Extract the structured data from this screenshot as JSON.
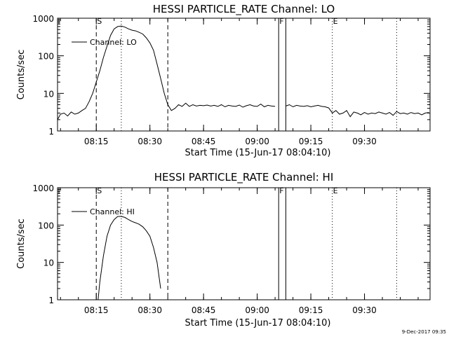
{
  "footer": {
    "timestamp": "9-Dec-2017 09:35"
  },
  "chart_data": [
    {
      "type": "line",
      "title": "HESSI PARTICLE_RATE Channel: LO",
      "ylabel": "Counts/sec",
      "xlabel": "Start Time (15-Jun-17 08:04:10)",
      "yscale": "log",
      "ylim": [
        1,
        1000
      ],
      "xlim": [
        "08:04:10",
        "09:48:20"
      ],
      "x_unit": "time of day",
      "y_ticks": [
        "1",
        "10",
        "100",
        "1000"
      ],
      "x_ticks": [
        "08:15",
        "08:30",
        "08:45",
        "09:00",
        "09:15",
        "09:30"
      ],
      "legend": {
        "position": "top-left",
        "entries": [
          "Channel: LO"
        ]
      },
      "flags": {
        "start_label": "S",
        "flare_label": "F",
        "end_label": "E"
      },
      "series": [
        {
          "name": "Channel: LO",
          "x": [
            "08:04:10",
            "08:05:00",
            "08:06:00",
            "08:07:00",
            "08:08:00",
            "08:09:00",
            "08:10:00",
            "08:11:00",
            "08:12:00",
            "08:13:00",
            "08:14:00",
            "08:15:00",
            "08:16:00",
            "08:17:00",
            "08:18:00",
            "08:19:00",
            "08:20:00",
            "08:21:00",
            "08:22:00",
            "08:23:00",
            "08:24:00",
            "08:25:00",
            "08:26:00",
            "08:27:00",
            "08:28:00",
            "08:29:00",
            "08:30:00",
            "08:31:00",
            "08:32:00",
            "08:33:00",
            "08:34:00",
            "08:35:00",
            "08:36:00",
            "08:37:00",
            "08:38:00",
            "08:39:00",
            "08:40:00",
            "08:41:00",
            "08:42:00",
            "08:43:00",
            "08:44:00",
            "08:45:00",
            "08:46:00",
            "08:47:00",
            "08:48:00",
            "08:49:00",
            "08:50:00",
            "08:51:00",
            "08:52:00",
            "08:53:00",
            "08:54:00",
            "08:55:00",
            "08:56:00",
            "08:57:00",
            "08:58:00",
            "08:59:00",
            "09:00:00",
            "09:01:00",
            "09:02:00",
            "09:03:00",
            "09:04:00",
            "09:05:00",
            "09:06:00",
            "09:07:00",
            "09:08:00",
            "09:09:00",
            "09:10:00",
            "09:11:00",
            "09:12:00",
            "09:13:00",
            "09:14:00",
            "09:15:00",
            "09:16:00",
            "09:17:00",
            "09:18:00",
            "09:19:00",
            "09:20:00",
            "09:21:00",
            "09:22:00",
            "09:23:00",
            "09:24:00",
            "09:25:00",
            "09:26:00",
            "09:27:00",
            "09:28:00",
            "09:29:00",
            "09:30:00",
            "09:31:00",
            "09:32:00",
            "09:33:00",
            "09:34:00",
            "09:35:00",
            "09:36:00",
            "09:37:00",
            "09:38:00",
            "09:39:00",
            "09:40:00",
            "09:41:00",
            "09:42:00",
            "09:43:00",
            "09:44:00",
            "09:45:00",
            "09:46:00",
            "09:47:00",
            "09:48:00"
          ],
          "y": [
            2.0,
            2.8,
            3.0,
            2.5,
            3.2,
            2.8,
            3.0,
            3.5,
            4.0,
            6.0,
            10.0,
            20.0,
            40.0,
            90.0,
            180.0,
            350.0,
            520.0,
            600.0,
            620.0,
            580.0,
            520.0,
            480.0,
            460.0,
            420.0,
            380.0,
            300.0,
            220.0,
            140.0,
            60.0,
            25.0,
            10.0,
            5.0,
            3.5,
            4.0,
            5.0,
            4.5,
            5.5,
            4.5,
            5.0,
            4.6,
            4.8,
            4.7,
            4.9,
            4.6,
            4.8,
            4.5,
            5.0,
            4.4,
            4.8,
            4.6,
            4.5,
            4.9,
            4.3,
            4.7,
            5.0,
            4.6,
            4.5,
            5.2,
            4.4,
            4.8,
            4.6,
            4.5,
            4.7,
            4.3,
            4.6,
            5.0,
            4.4,
            4.8,
            4.6,
            4.5,
            4.7,
            4.4,
            4.6,
            4.8,
            4.5,
            4.4,
            4.1,
            3.0,
            3.5,
            2.8,
            3.0,
            3.5,
            2.4,
            3.2,
            3.0,
            2.7,
            3.1,
            2.8,
            3.0,
            2.9,
            3.2,
            3.0,
            2.8,
            3.1,
            2.6,
            3.3,
            2.9,
            3.0,
            2.8,
            3.1,
            2.9,
            3.0,
            2.7,
            3.0,
            3.1
          ]
        }
      ],
      "gap": [
        "09:06:00",
        "09:07:00"
      ]
    },
    {
      "type": "line",
      "title": "HESSI PARTICLE_RATE Channel: HI",
      "ylabel": "Counts/sec",
      "xlabel": "Start Time (15-Jun-17 08:04:10)",
      "yscale": "log",
      "ylim": [
        1,
        1000
      ],
      "xlim": [
        "08:04:10",
        "09:48:20"
      ],
      "y_ticks": [
        "1",
        "10",
        "100",
        "1000"
      ],
      "x_ticks": [
        "08:15",
        "08:30",
        "08:45",
        "09:00",
        "09:15",
        "09:30"
      ],
      "legend": {
        "position": "top-left",
        "entries": [
          "Channel: HI"
        ]
      },
      "flags": {
        "start_label": "S",
        "flare_label": "F",
        "end_label": "E"
      },
      "series": [
        {
          "name": "Channel: HI",
          "x": [
            "08:15:30",
            "08:16:00",
            "08:17:00",
            "08:18:00",
            "08:19:00",
            "08:20:00",
            "08:21:00",
            "08:22:00",
            "08:23:00",
            "08:24:00",
            "08:25:00",
            "08:26:00",
            "08:27:00",
            "08:28:00",
            "08:29:00",
            "08:30:00",
            "08:31:00",
            "08:32:00",
            "08:33:00"
          ],
          "y": [
            1.0,
            3.0,
            15.0,
            50.0,
            100.0,
            140.0,
            170.0,
            170.0,
            160.0,
            140.0,
            125.0,
            115.0,
            105.0,
            90.0,
            70.0,
            50.0,
            25.0,
            10.0,
            2.0
          ]
        }
      ]
    }
  ],
  "markers": {
    "dashed": [
      "08:15:00",
      "08:35:00"
    ],
    "dotted": [
      "08:22:00",
      "09:21:00",
      "09:39:00"
    ],
    "solid": [
      "09:06:00",
      "09:08:00"
    ]
  }
}
